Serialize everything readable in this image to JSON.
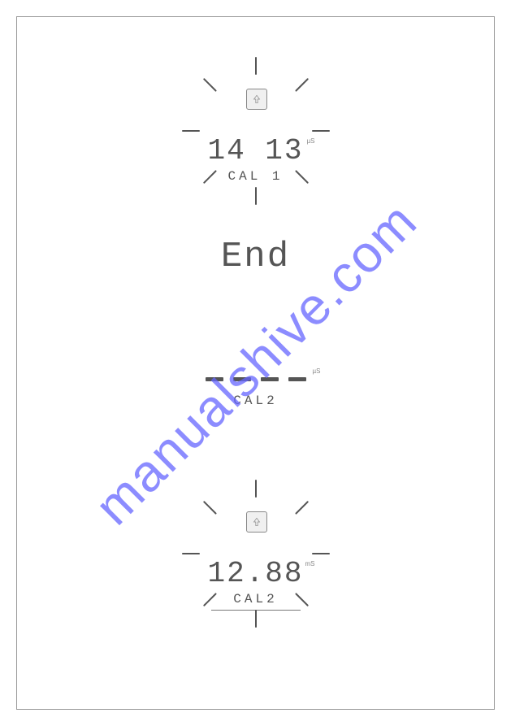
{
  "watermark": {
    "text": "manualshive.com",
    "color": "#6666ff",
    "fontsize": 64
  },
  "panel": {
    "border_color": "#999999",
    "background": "#ffffff"
  },
  "flash_icon": {
    "ray_count": 8,
    "ray_color": "#555555",
    "core_border": "#888888",
    "core_fill": "#f0f0f0"
  },
  "section1": {
    "value": "14 13",
    "unit": "µS",
    "label": "CAL 1",
    "value_fontsize": 36,
    "label_fontsize": 16,
    "text_color": "#555555"
  },
  "section2": {
    "text": "End",
    "fontsize": 44,
    "text_color": "#555555"
  },
  "section3": {
    "dash_count": 4,
    "unit": "µS",
    "label": "CAL2",
    "label_fontsize": 16,
    "text_color": "#555555"
  },
  "section4": {
    "value": "12.88",
    "unit": "mS",
    "label": "CAL2",
    "value_fontsize": 36,
    "label_fontsize": 16,
    "underline": true,
    "text_color": "#555555"
  }
}
